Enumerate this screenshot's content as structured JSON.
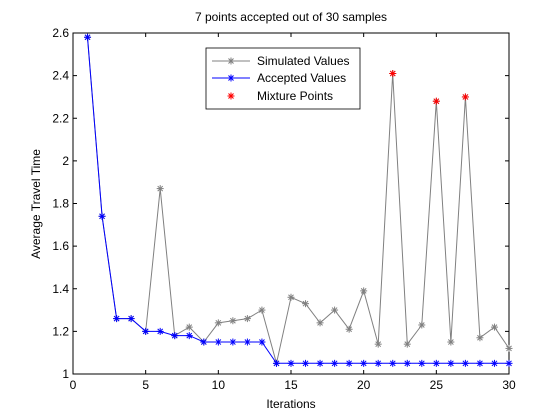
{
  "chart_data": {
    "type": "line",
    "title": "7 points accepted out of 30 samples",
    "xlabel": "Iterations",
    "ylabel": "Average Travel Time",
    "xlim": [
      0,
      30
    ],
    "ylim": [
      1,
      2.6
    ],
    "xticks": [
      0,
      5,
      10,
      15,
      20,
      25,
      30
    ],
    "yticks": [
      1,
      1.2,
      1.4,
      1.6,
      1.8,
      2,
      2.2,
      2.4,
      2.6
    ],
    "grid": false,
    "legend_position": "top-center",
    "series": [
      {
        "name": "Simulated Values",
        "style": "line-star",
        "color": "#808080",
        "x": [
          1,
          2,
          3,
          4,
          5,
          6,
          7,
          8,
          9,
          10,
          11,
          12,
          13,
          14,
          15,
          16,
          17,
          18,
          19,
          20,
          21,
          22,
          23,
          24,
          25,
          26,
          27,
          28,
          29,
          30
        ],
        "values": [
          2.58,
          1.74,
          1.26,
          1.26,
          1.2,
          1.87,
          1.18,
          1.22,
          1.15,
          1.24,
          1.25,
          1.26,
          1.3,
          1.05,
          1.36,
          1.33,
          1.24,
          1.3,
          1.21,
          1.39,
          1.14,
          2.41,
          1.14,
          1.23,
          2.28,
          1.15,
          2.3,
          1.17,
          1.22,
          1.12
        ]
      },
      {
        "name": "Accepted Values",
        "style": "line-star",
        "color": "#0000ff",
        "x": [
          1,
          2,
          3,
          4,
          5,
          6,
          7,
          8,
          9,
          10,
          11,
          12,
          13,
          14,
          15,
          16,
          17,
          18,
          19,
          20,
          21,
          22,
          23,
          24,
          25,
          26,
          27,
          28,
          29,
          30
        ],
        "values": [
          2.58,
          1.74,
          1.26,
          1.26,
          1.2,
          1.2,
          1.18,
          1.18,
          1.15,
          1.15,
          1.15,
          1.15,
          1.15,
          1.05,
          1.05,
          1.05,
          1.05,
          1.05,
          1.05,
          1.05,
          1.05,
          1.05,
          1.05,
          1.05,
          1.05,
          1.05,
          1.05,
          1.05,
          1.05,
          1.05
        ]
      },
      {
        "name": "Mixture Points",
        "style": "star",
        "color": "#ff0000",
        "x": [
          22,
          25,
          27
        ],
        "values": [
          2.41,
          2.28,
          2.3
        ]
      }
    ]
  }
}
